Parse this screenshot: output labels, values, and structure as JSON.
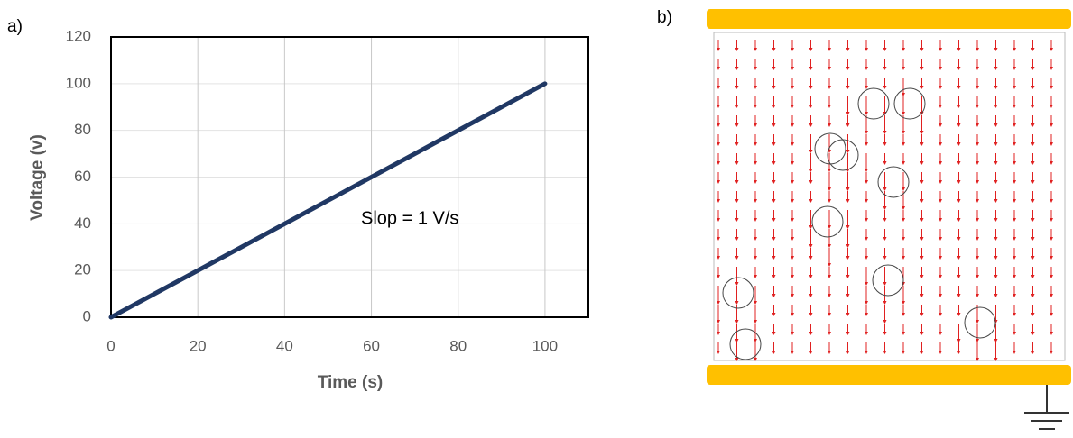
{
  "panel_labels": [
    "a)",
    "b)"
  ],
  "chart_data": {
    "type": "line",
    "x_label": "Time (s)",
    "y_label": "Voltage (v)",
    "annotation": "Slop = 1 V/s",
    "x": [
      0,
      100
    ],
    "series": [
      {
        "name": "Voltage",
        "color": "#203864",
        "values": [
          0,
          100
        ]
      }
    ],
    "xlim": [
      0,
      110
    ],
    "xticks": [
      0,
      20,
      40,
      60,
      80,
      100
    ],
    "ylim": [
      0,
      120
    ],
    "yticks": [
      0,
      20,
      40,
      60,
      80,
      100,
      120
    ],
    "grid": true
  }
}
